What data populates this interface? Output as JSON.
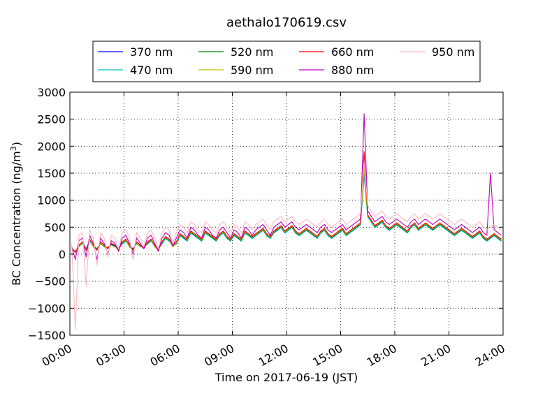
{
  "chart_data": {
    "type": "line",
    "title": "aethalo170619.csv",
    "xlabel": "Time on 2017-06-19 (JST)",
    "ylabel_main": "BC Concentration (ng/m",
    "ylabel_sup": "3",
    "ylabel_tail": ")",
    "x_unit": "hours",
    "xlim": [
      0,
      24
    ],
    "ylim": [
      -1500,
      3000
    ],
    "xticks": [
      0,
      3,
      6,
      9,
      12,
      15,
      18,
      21,
      24
    ],
    "xtick_labels": [
      "00:00",
      "03:00",
      "06:00",
      "09:00",
      "12:00",
      "15:00",
      "18:00",
      "21:00",
      "24:00"
    ],
    "yticks": [
      -1500,
      -1000,
      -500,
      0,
      500,
      1000,
      1500,
      2000,
      2500,
      3000
    ],
    "ytick_labels": [
      "−1500",
      "−1000",
      "−500",
      "0",
      "500",
      "1000",
      "1500",
      "2000",
      "2500",
      "3000"
    ],
    "grid": true,
    "legend_position": "top-center",
    "x_sample_start": 0.1,
    "x_sample_end": 23.9,
    "x_sample_step": 0.2,
    "series": [
      {
        "name": "370 nm",
        "color": "#0000ff",
        "values": [
          100,
          50,
          150,
          200,
          100,
          250,
          150,
          100,
          200,
          150,
          120,
          180,
          150,
          100,
          200,
          250,
          150,
          100,
          200,
          150,
          120,
          200,
          250,
          150,
          100,
          200,
          300,
          250,
          150,
          200,
          350,
          300,
          250,
          400,
          350,
          300,
          250,
          400,
          350,
          300,
          250,
          350,
          400,
          300,
          250,
          350,
          300,
          250,
          400,
          350,
          300,
          350,
          400,
          450,
          350,
          300,
          400,
          450,
          500,
          400,
          450,
          500,
          400,
          350,
          400,
          450,
          400,
          350,
          300,
          400,
          450,
          350,
          300,
          350,
          400,
          450,
          350,
          400,
          450,
          500,
          550,
          1500,
          700,
          600,
          500,
          550,
          600,
          500,
          450,
          500,
          550,
          500,
          450,
          400,
          500,
          550,
          450,
          500,
          550,
          500,
          450,
          500,
          550,
          500,
          450,
          400,
          350,
          400,
          450,
          400,
          350,
          300,
          350,
          400,
          300,
          250,
          300,
          350,
          300,
          250
        ]
      },
      {
        "name": "470 nm",
        "color": "#00bfbf",
        "values": [
          100,
          60,
          140,
          190,
          110,
          240,
          140,
          110,
          190,
          140,
          130,
          170,
          140,
          110,
          190,
          240,
          140,
          110,
          190,
          140,
          130,
          190,
          240,
          140,
          110,
          190,
          290,
          240,
          140,
          190,
          340,
          290,
          240,
          390,
          340,
          290,
          240,
          390,
          340,
          290,
          240,
          340,
          390,
          290,
          240,
          340,
          290,
          240,
          390,
          340,
          290,
          340,
          390,
          440,
          340,
          290,
          390,
          440,
          490,
          390,
          440,
          490,
          390,
          340,
          390,
          440,
          390,
          340,
          290,
          390,
          440,
          340,
          290,
          340,
          390,
          440,
          340,
          390,
          440,
          490,
          540,
          1450,
          690,
          590,
          490,
          540,
          590,
          490,
          440,
          490,
          540,
          490,
          440,
          390,
          490,
          540,
          440,
          490,
          540,
          490,
          440,
          490,
          540,
          490,
          440,
          390,
          340,
          390,
          440,
          390,
          340,
          290,
          340,
          390,
          290,
          240,
          290,
          340,
          290,
          240
        ]
      },
      {
        "name": "520 nm",
        "color": "#008000",
        "values": [
          110,
          40,
          160,
          210,
          90,
          260,
          160,
          90,
          210,
          160,
          110,
          190,
          160,
          90,
          210,
          260,
          160,
          90,
          210,
          160,
          110,
          210,
          260,
          160,
          90,
          210,
          310,
          260,
          160,
          210,
          360,
          310,
          260,
          410,
          360,
          310,
          260,
          410,
          360,
          310,
          260,
          360,
          410,
          310,
          260,
          360,
          310,
          260,
          410,
          360,
          310,
          360,
          410,
          460,
          360,
          310,
          410,
          460,
          510,
          410,
          460,
          510,
          410,
          360,
          410,
          460,
          410,
          360,
          310,
          410,
          460,
          360,
          310,
          360,
          410,
          460,
          360,
          410,
          460,
          510,
          560,
          1550,
          710,
          610,
          510,
          560,
          610,
          510,
          460,
          510,
          560,
          510,
          460,
          410,
          510,
          560,
          460,
          510,
          560,
          510,
          460,
          510,
          560,
          510,
          460,
          410,
          360,
          410,
          460,
          410,
          360,
          310,
          360,
          410,
          310,
          260,
          310,
          360,
          310,
          260
        ]
      },
      {
        "name": "590 nm",
        "color": "#bfbf00",
        "values": [
          90,
          70,
          130,
          220,
          80,
          270,
          130,
          80,
          220,
          130,
          140,
          160,
          130,
          80,
          220,
          270,
          130,
          80,
          220,
          130,
          140,
          220,
          270,
          130,
          80,
          220,
          320,
          270,
          130,
          220,
          370,
          320,
          270,
          420,
          370,
          320,
          270,
          420,
          370,
          320,
          270,
          370,
          420,
          320,
          270,
          370,
          320,
          270,
          420,
          370,
          320,
          370,
          420,
          470,
          370,
          320,
          420,
          470,
          520,
          420,
          470,
          520,
          420,
          370,
          420,
          470,
          420,
          370,
          320,
          420,
          470,
          370,
          320,
          370,
          420,
          470,
          370,
          420,
          470,
          520,
          570,
          1600,
          720,
          620,
          520,
          570,
          620,
          520,
          470,
          520,
          570,
          520,
          470,
          420,
          520,
          570,
          470,
          520,
          570,
          520,
          470,
          520,
          570,
          520,
          470,
          420,
          370,
          420,
          470,
          420,
          370,
          320,
          370,
          420,
          320,
          270,
          320,
          370,
          320,
          270
        ]
      },
      {
        "name": "660 nm",
        "color": "#ff0000",
        "values": [
          120,
          30,
          170,
          230,
          70,
          280,
          170,
          70,
          230,
          170,
          100,
          200,
          170,
          70,
          230,
          280,
          170,
          70,
          230,
          170,
          100,
          230,
          280,
          170,
          70,
          230,
          330,
          280,
          170,
          230,
          380,
          330,
          280,
          430,
          380,
          330,
          280,
          430,
          380,
          330,
          280,
          380,
          430,
          330,
          280,
          380,
          330,
          280,
          430,
          380,
          330,
          380,
          430,
          480,
          380,
          330,
          430,
          480,
          530,
          430,
          480,
          530,
          430,
          380,
          430,
          480,
          430,
          380,
          330,
          430,
          480,
          380,
          330,
          380,
          430,
          480,
          380,
          430,
          480,
          530,
          580,
          1900,
          730,
          630,
          530,
          580,
          630,
          530,
          480,
          530,
          580,
          530,
          480,
          430,
          530,
          580,
          480,
          530,
          580,
          530,
          480,
          530,
          580,
          530,
          480,
          430,
          380,
          430,
          480,
          430,
          380,
          330,
          380,
          430,
          330,
          280,
          330,
          380,
          330,
          280
        ]
      },
      {
        "name": "880 nm",
        "color": "#bf00bf",
        "values": [
          150,
          -100,
          250,
          300,
          -50,
          350,
          200,
          -100,
          300,
          200,
          0,
          250,
          200,
          50,
          300,
          350,
          200,
          0,
          300,
          200,
          100,
          300,
          350,
          200,
          50,
          300,
          400,
          350,
          150,
          300,
          450,
          400,
          300,
          500,
          450,
          350,
          300,
          500,
          450,
          350,
          300,
          450,
          500,
          400,
          300,
          450,
          400,
          300,
          500,
          450,
          350,
          450,
          500,
          550,
          450,
          350,
          500,
          550,
          600,
          500,
          550,
          600,
          500,
          450,
          500,
          550,
          500,
          450,
          400,
          500,
          550,
          450,
          400,
          450,
          500,
          550,
          450,
          500,
          550,
          600,
          650,
          2600,
          800,
          700,
          600,
          650,
          700,
          600,
          550,
          600,
          650,
          600,
          550,
          500,
          600,
          650,
          550,
          600,
          650,
          600,
          550,
          600,
          650,
          600,
          550,
          500,
          450,
          500,
          550,
          500,
          450,
          400,
          450,
          500,
          400,
          350,
          1500,
          450,
          400,
          350
        ]
      },
      {
        "name": "950 nm",
        "color": "#ffb6c1",
        "values": [
          200,
          -1400,
          350,
          400,
          -600,
          450,
          300,
          -200,
          400,
          300,
          -50,
          350,
          300,
          100,
          400,
          450,
          300,
          -100,
          400,
          300,
          150,
          400,
          450,
          300,
          100,
          400,
          500,
          450,
          200,
          400,
          550,
          500,
          400,
          600,
          550,
          450,
          400,
          600,
          550,
          450,
          400,
          550,
          600,
          500,
          400,
          550,
          500,
          400,
          600,
          550,
          450,
          550,
          600,
          650,
          550,
          450,
          600,
          650,
          700,
          600,
          650,
          700,
          600,
          550,
          600,
          650,
          600,
          550,
          500,
          600,
          650,
          550,
          500,
          550,
          600,
          650,
          550,
          600,
          650,
          700,
          750,
          1700,
          900,
          800,
          700,
          750,
          800,
          700,
          650,
          700,
          750,
          700,
          650,
          600,
          700,
          750,
          650,
          700,
          750,
          700,
          650,
          700,
          750,
          700,
          650,
          600,
          550,
          600,
          650,
          600,
          550,
          500,
          550,
          600,
          500,
          450,
          500,
          550,
          500,
          450
        ]
      }
    ]
  }
}
